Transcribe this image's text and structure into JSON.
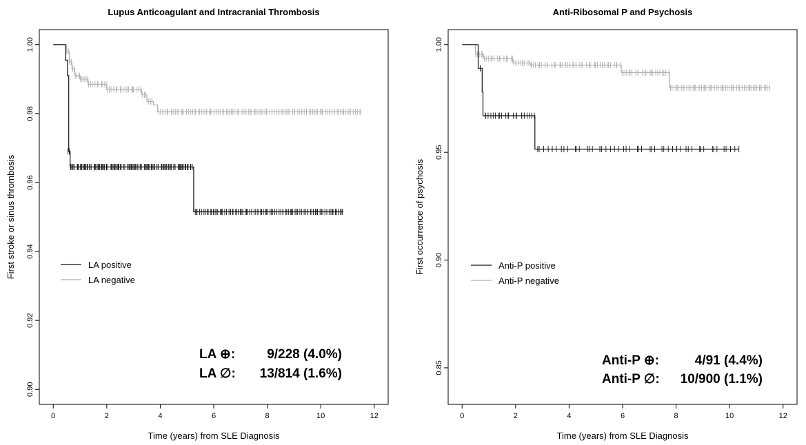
{
  "chart_data": [
    {
      "type": "line",
      "subtype": "kaplan-meier",
      "title": "Lupus Anticoagulant and Intracranial Thrombosis",
      "xlabel": "Time (years) from SLE Diagnosis",
      "ylabel": "First stroke or sinus thrombosis",
      "xlim": [
        0,
        12
      ],
      "ylim": [
        0.9,
        1.0
      ],
      "xticks": [
        "0",
        "2",
        "4",
        "6",
        "8",
        "10",
        "12"
      ],
      "yticks": [
        "0.90",
        "0.92",
        "0.94",
        "0.96",
        "0.98",
        "1.00"
      ],
      "grid": false,
      "legend_position": "left-middle",
      "series": [
        {
          "name": "LA positive",
          "color": "#111111",
          "steps": [
            [
              0,
              1.0
            ],
            [
              0.45,
              0.9955
            ],
            [
              0.53,
              0.991
            ],
            [
              0.58,
              0.969
            ],
            [
              0.63,
              0.9645
            ],
            [
              5.25,
              0.9515
            ],
            [
              10.85,
              0.9515
            ]
          ],
          "censor_segments": [
            [
              0.55,
              0.6,
              0.969,
              2
            ],
            [
              0.65,
              5.2,
              0.9645,
              110
            ],
            [
              5.3,
              10.85,
              0.9515,
              90
            ]
          ]
        },
        {
          "name": "LA negative",
          "color": "#b0b0b0",
          "steps": [
            [
              0,
              1.0
            ],
            [
              0.5,
              0.998
            ],
            [
              0.6,
              0.995
            ],
            [
              0.7,
              0.993
            ],
            [
              0.8,
              0.991
            ],
            [
              1.0,
              0.99
            ],
            [
              1.3,
              0.9885
            ],
            [
              2.0,
              0.987
            ],
            [
              3.3,
              0.9855
            ],
            [
              3.5,
              0.9835
            ],
            [
              3.75,
              0.9825
            ],
            [
              3.9,
              0.9805
            ],
            [
              11.5,
              0.9805
            ]
          ],
          "censor_segments": [
            [
              0.5,
              0.58,
              0.998,
              3
            ],
            [
              0.62,
              0.68,
              0.995,
              3
            ],
            [
              0.72,
              0.78,
              0.993,
              3
            ],
            [
              0.82,
              0.98,
              0.991,
              4
            ],
            [
              1.02,
              1.28,
              0.99,
              5
            ],
            [
              1.32,
              1.98,
              0.9885,
              10
            ],
            [
              2.02,
              3.28,
              0.987,
              18
            ],
            [
              3.32,
              3.48,
              0.9855,
              3
            ],
            [
              3.55,
              3.72,
              0.9835,
              3
            ],
            [
              3.95,
              11.5,
              0.9805,
              110
            ]
          ]
        }
      ],
      "annotations": [
        {
          "label": "LA ⊕:",
          "value": "9/228 (4.0%)"
        },
        {
          "label": "LA ∅:",
          "value": "13/814 (1.6%)"
        }
      ]
    },
    {
      "type": "line",
      "subtype": "kaplan-meier",
      "title": "Anti-Ribosomal P and Psychosis",
      "xlabel": "Time (years) from SLE Diagnosis",
      "ylabel": "First occurrence of psychosis",
      "xlim": [
        0,
        12
      ],
      "ylim": [
        0.84,
        1.0
      ],
      "xticks": [
        "0",
        "2",
        "4",
        "6",
        "8",
        "10",
        "12"
      ],
      "yticks": [
        "0.85",
        "0.90",
        "0.95",
        "1.00"
      ],
      "grid": false,
      "legend_position": "left-middle",
      "series": [
        {
          "name": "Anti-P positive",
          "color": "#111111",
          "steps": [
            [
              0,
              1.0
            ],
            [
              0.6,
              0.989
            ],
            [
              0.75,
              0.978
            ],
            [
              0.78,
              0.967
            ],
            [
              2.72,
              0.9515
            ],
            [
              10.35,
              0.9515
            ]
          ],
          "censor_segments": [
            [
              0.6,
              0.7,
              0.989,
              2
            ],
            [
              0.8,
              2.7,
              0.967,
              22
            ],
            [
              2.75,
              10.35,
              0.9515,
              50
            ]
          ]
        },
        {
          "name": "Anti-P negative",
          "color": "#b0b0b0",
          "steps": [
            [
              0,
              1.0
            ],
            [
              0.5,
              0.9955
            ],
            [
              0.8,
              0.9935
            ],
            [
              1.9,
              0.9915
            ],
            [
              2.55,
              0.9905
            ],
            [
              5.95,
              0.987
            ],
            [
              7.75,
              0.98
            ],
            [
              11.5,
              0.98
            ]
          ],
          "censor_segments": [
            [
              0.5,
              0.78,
              0.9955,
              5
            ],
            [
              0.82,
              1.88,
              0.9935,
              14
            ],
            [
              1.92,
              2.53,
              0.9915,
              8
            ],
            [
              2.57,
              5.93,
              0.9905,
              40
            ],
            [
              5.97,
              7.73,
              0.987,
              22
            ],
            [
              7.78,
              11.5,
              0.98,
              55
            ]
          ]
        }
      ],
      "annotations": [
        {
          "label": "Anti-P ⊕:",
          "value": "4/91 (4.4%)"
        },
        {
          "label": "Anti-P ∅:",
          "value": "10/900 (1.1%)"
        }
      ]
    }
  ]
}
